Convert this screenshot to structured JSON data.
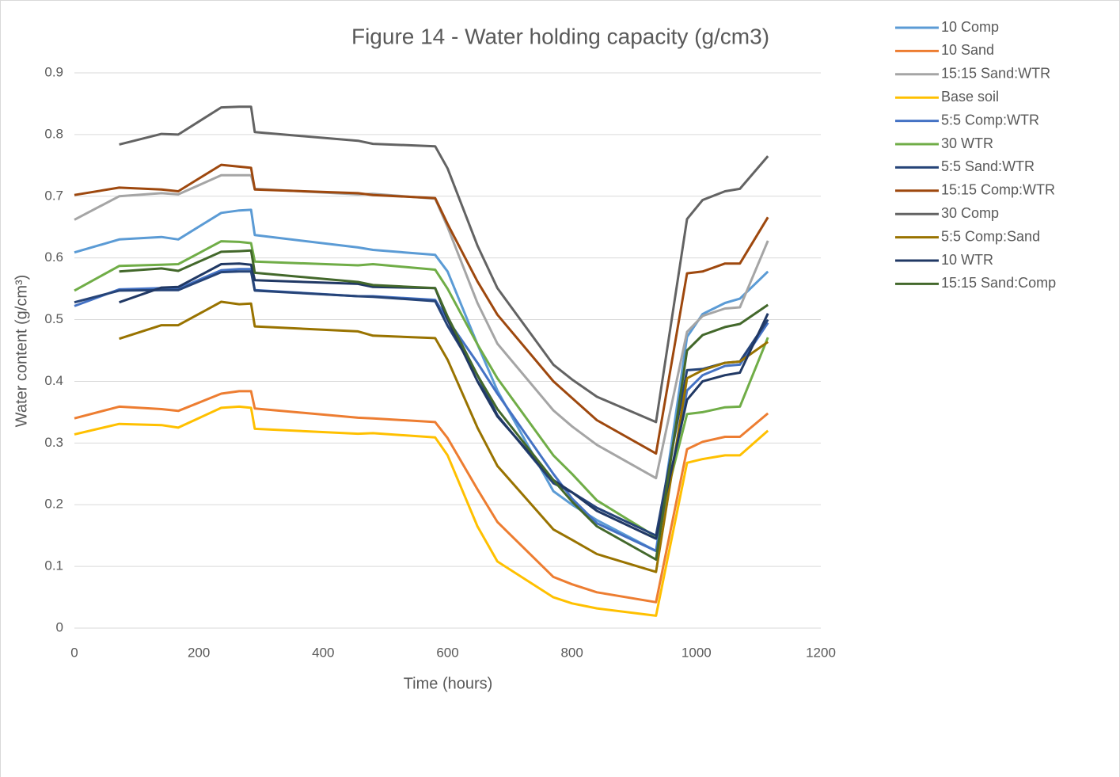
{
  "chart_data": {
    "type": "line",
    "title": "Figure 14 - Water holding capacity (g/cm3)",
    "x_label": "Time (hours)",
    "y_label": "Water content (g/cm³)",
    "x": [
      0,
      72,
      140,
      167,
      236,
      265,
      284,
      290,
      456,
      480,
      580,
      600,
      648,
      680,
      770,
      800,
      840,
      935,
      985,
      1010,
      1046,
      1070,
      1115
    ],
    "xlim": [
      0,
      1200
    ],
    "xticks": [
      0,
      200,
      400,
      600,
      800,
      1000,
      1200
    ],
    "ylim": [
      0,
      0.9
    ],
    "yticks": [
      0,
      0.1,
      0.2,
      0.3,
      0.4,
      0.5,
      0.6,
      0.7,
      0.8,
      0.9
    ],
    "grid": true,
    "legend": "right",
    "series": [
      {
        "name": "10 Comp",
        "color": "#5b9bd5",
        "values": [
          0.609,
          0.63,
          0.634,
          0.63,
          0.673,
          0.677,
          0.678,
          0.637,
          0.617,
          0.613,
          0.605,
          0.578,
          0.46,
          0.385,
          0.222,
          0.2,
          0.175,
          0.125,
          0.472,
          0.509,
          0.527,
          0.534,
          0.578
        ]
      },
      {
        "name": "10 Sand",
        "color": "#ed7d31",
        "values": [
          0.34,
          0.359,
          0.355,
          0.352,
          0.38,
          0.384,
          0.384,
          0.356,
          0.341,
          0.34,
          0.334,
          0.308,
          0.225,
          0.172,
          0.083,
          0.071,
          0.058,
          0.042,
          0.29,
          0.302,
          0.31,
          0.31,
          0.348
        ]
      },
      {
        "name": "15:15 Sand:WTR",
        "color": "#a5a5a5",
        "values": [
          0.662,
          0.7,
          0.705,
          0.703,
          0.734,
          0.734,
          0.734,
          0.712,
          0.703,
          0.704,
          0.696,
          0.65,
          0.527,
          0.461,
          0.353,
          0.327,
          0.297,
          0.243,
          0.48,
          0.506,
          0.518,
          0.52,
          0.628
        ]
      },
      {
        "name": "Base soil",
        "color": "#ffc000",
        "values": [
          0.314,
          0.331,
          0.329,
          0.325,
          0.357,
          0.359,
          0.357,
          0.323,
          0.315,
          0.316,
          0.309,
          0.28,
          0.165,
          0.108,
          0.05,
          0.04,
          0.032,
          0.02,
          0.268,
          0.274,
          0.28,
          0.28,
          0.32
        ]
      },
      {
        "name": "5:5 Comp:WTR",
        "color": "#4472c4",
        "values": [
          0.522,
          0.549,
          0.551,
          0.55,
          0.58,
          0.582,
          0.582,
          0.548,
          0.538,
          0.538,
          0.532,
          0.5,
          0.43,
          0.38,
          0.25,
          0.21,
          0.17,
          0.125,
          0.385,
          0.41,
          0.425,
          0.427,
          0.495
        ]
      },
      {
        "name": "30 WTR",
        "color": "#70ad47",
        "values": [
          0.547,
          0.587,
          0.589,
          0.59,
          0.627,
          0.626,
          0.624,
          0.594,
          0.588,
          0.59,
          0.581,
          0.55,
          0.46,
          0.405,
          0.28,
          0.25,
          0.207,
          0.148,
          0.347,
          0.35,
          0.358,
          0.359,
          0.471
        ]
      },
      {
        "name": "5:5 Sand:WTR",
        "color": "#264478",
        "values": [
          0.528,
          0.547,
          0.548,
          0.548,
          0.577,
          0.578,
          0.578,
          0.547,
          0.538,
          0.537,
          0.53,
          0.49,
          0.41,
          0.345,
          0.235,
          0.22,
          0.195,
          0.15,
          0.418,
          0.42,
          0.43,
          0.432,
          0.5
        ]
      },
      {
        "name": "15:15 Comp:WTR",
        "color": "#9e480e",
        "values": [
          0.702,
          0.714,
          0.711,
          0.708,
          0.751,
          0.748,
          0.746,
          0.711,
          0.705,
          0.702,
          0.697,
          0.655,
          0.562,
          0.508,
          0.4,
          0.373,
          0.337,
          0.283,
          0.575,
          0.578,
          0.591,
          0.591,
          0.666
        ]
      },
      {
        "name": "30 Comp",
        "color": "#636363",
        "values": [
          null,
          0.784,
          0.801,
          0.8,
          0.844,
          0.845,
          0.845,
          0.804,
          0.79,
          0.785,
          0.781,
          0.745,
          0.62,
          0.551,
          0.427,
          0.403,
          0.375,
          0.334,
          0.663,
          0.694,
          0.708,
          0.712,
          0.765
        ]
      },
      {
        "name": "5:5 Comp:Sand",
        "color": "#997300",
        "values": [
          null,
          0.469,
          0.491,
          0.491,
          0.529,
          0.525,
          0.526,
          0.489,
          0.481,
          0.474,
          0.47,
          0.435,
          0.325,
          0.263,
          0.16,
          0.143,
          0.12,
          0.091,
          0.405,
          0.418,
          0.43,
          0.432,
          0.464
        ]
      },
      {
        "name": "10 WTR",
        "color": "#203864",
        "values": [
          null,
          0.528,
          0.552,
          0.553,
          0.59,
          0.591,
          0.589,
          0.564,
          0.558,
          0.553,
          0.551,
          0.5,
          0.4,
          0.343,
          0.24,
          0.22,
          0.19,
          0.145,
          0.37,
          0.4,
          0.41,
          0.414,
          0.51
        ]
      },
      {
        "name": "15:15 Sand:Comp",
        "color": "#43682b",
        "values": [
          null,
          0.578,
          0.583,
          0.579,
          0.61,
          0.611,
          0.612,
          0.576,
          0.561,
          0.556,
          0.551,
          0.505,
          0.41,
          0.355,
          0.24,
          0.205,
          0.165,
          0.111,
          0.45,
          0.475,
          0.488,
          0.493,
          0.524
        ]
      }
    ]
  }
}
